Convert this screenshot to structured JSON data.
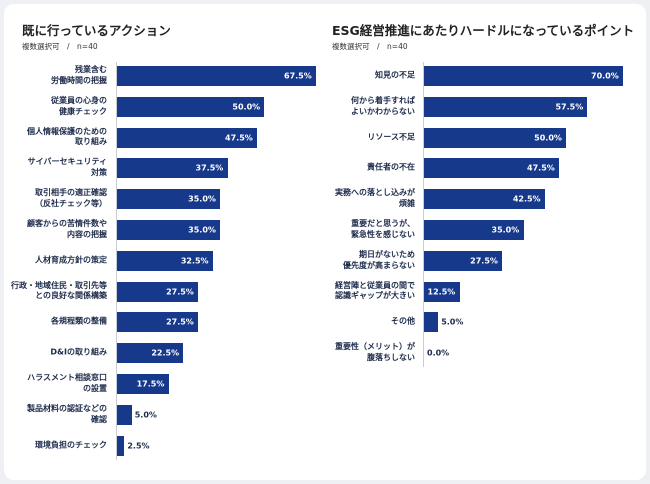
{
  "chart_data": [
    {
      "type": "bar",
      "orientation": "horizontal",
      "title": "既に行っているアクション",
      "subtitle": "複数選択可　/　n=40",
      "color": "#16398c",
      "categories": [
        "残業含む\n労働時間の把握",
        "従業員の心身の\n健康チェック",
        "個人情報保護のための\n取り組み",
        "サイバーセキュリティ\n対策",
        "取引相手の適正確認\n（反社チェック等）",
        "顧客からの苦情件数や\n内容の把握",
        "人材育成方針の策定",
        "行政・地域住民・取引先等\nとの良好な関係構築",
        "各規程類の整備",
        "D&Iの取り組み",
        "ハラスメント相談窓口\nの設置",
        "製品材料の認証などの\n確認",
        "環境負担のチェック"
      ],
      "values": [
        67.5,
        50,
        47.5,
        37.5,
        35,
        35,
        32.5,
        27.5,
        27.5,
        22.5,
        17.5,
        5,
        2.5
      ],
      "value_labels": [
        "67.5%",
        "50.0%",
        "47.5%",
        "37.5%",
        "35.0%",
        "35.0%",
        "32.5%",
        "27.5%",
        "27.5%",
        "22.5%",
        "17.5%",
        "5.0%",
        "2.5%"
      ]
    },
    {
      "type": "bar",
      "orientation": "horizontal",
      "title": "ESG経営推進にあたりハードルになっているポイント",
      "subtitle": "複数選択可　/　n=40",
      "color": "#16398c",
      "categories": [
        "知見の不足",
        "何から着手すれば\nよいかわからない",
        "リソース不足",
        "責任者の不在",
        "実務への落とし込みが\n煩雑",
        "重要だと思うが、\n緊急性を感じない",
        "期日がないため\n優先度が高まらない",
        "経営陣と従業員の間で\n認識ギャップが大きい",
        "その他",
        "重要性（メリット）が\n腹落ちしない"
      ],
      "values": [
        70,
        57.5,
        50,
        47.5,
        42.5,
        35,
        27.5,
        12.5,
        5,
        0
      ],
      "value_labels": [
        "70.0%",
        "57.5%",
        "50.0%",
        "47.5%",
        "42.5%",
        "35.0%",
        "27.5%",
        "12.5%",
        "5.0%",
        "0.0%"
      ]
    }
  ]
}
